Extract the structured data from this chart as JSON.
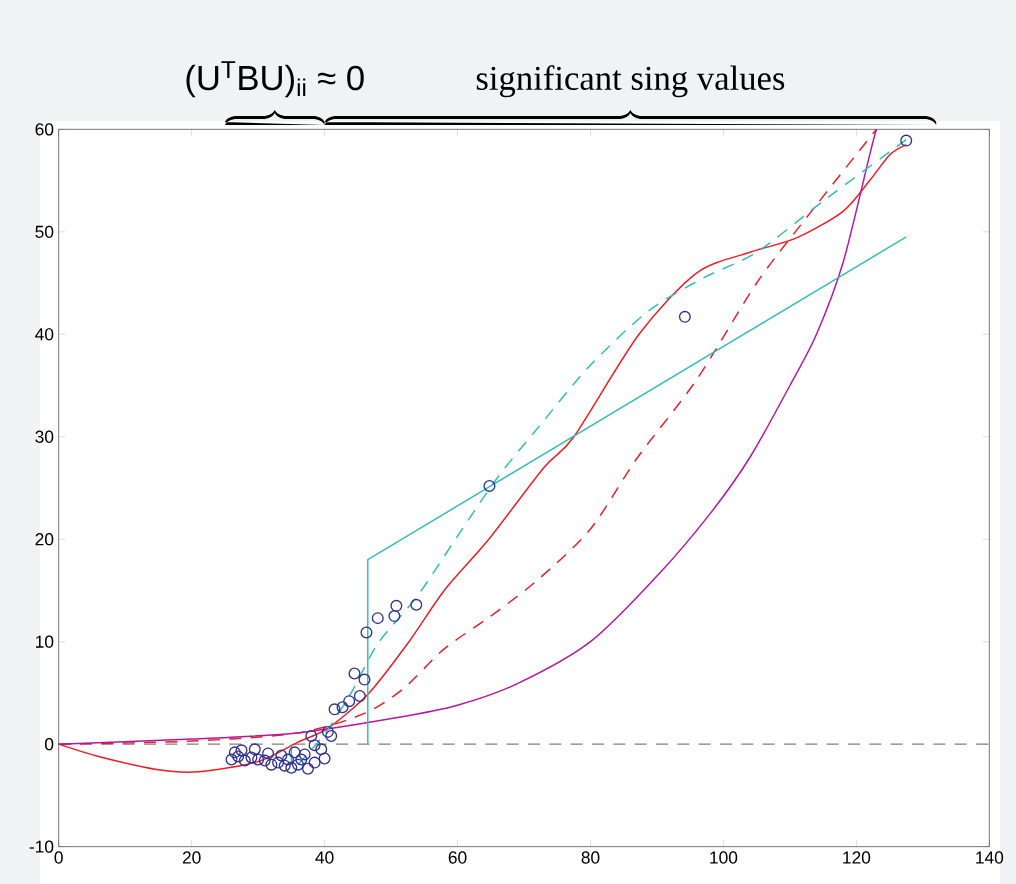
{
  "chart_data": {
    "type": "line",
    "xlim": [
      0,
      140
    ],
    "ylim": [
      -10,
      60
    ],
    "xticks": [
      0,
      20,
      40,
      60,
      80,
      100,
      120,
      140
    ],
    "yticks": [
      -10,
      0,
      10,
      20,
      30,
      40,
      50,
      60
    ],
    "grid": false,
    "annotations": [
      "(U$^{T}$BU)$_{ii}$ ≈ 0",
      "significant sing values"
    ],
    "ref_lines": [
      {
        "axis": "y",
        "value": 0,
        "color": "#808080",
        "line_style": "dashed"
      }
    ],
    "series": [
      {
        "type": "scatter",
        "marker": "circle",
        "color": "#2e3192",
        "x": [
          127.5,
          94.2,
          64.8,
          53.8,
          50.8,
          50.5,
          48,
          46.3,
          44.5,
          46,
          45.3,
          43.7,
          42.7,
          41.5,
          41,
          40.5,
          39.5,
          40,
          38.5,
          38,
          37.5,
          36.5,
          35,
          34,
          33,
          32,
          31,
          30,
          29,
          28,
          27,
          26.5,
          26,
          27.5,
          29.5,
          31.5,
          33.5,
          35.5,
          37,
          38.5,
          36,
          34.5
        ],
        "values": [
          58.9,
          41.7,
          25.2,
          13.6,
          13.5,
          12.5,
          12.3,
          10.9,
          6.9,
          6.3,
          4.7,
          4.2,
          3.6,
          3.4,
          0.8,
          1.2,
          -0.5,
          -1.4,
          -0.1,
          0.8,
          -2.4,
          -1.5,
          -2.3,
          -2.1,
          -1.8,
          -2.0,
          -1.6,
          -1.5,
          -1.3,
          -1.6,
          -1.2,
          -0.8,
          -1.5,
          -0.6,
          -0.5,
          -0.9,
          -1.1,
          -0.8,
          -1.0,
          -1.8,
          -2.0,
          -1.5
        ]
      },
      {
        "marker": "none",
        "line_style": "solid",
        "color": "#ed1c24",
        "x": [
          0,
          6,
          15,
          21,
          30,
          36,
          40.6,
          46.7,
          52.7,
          58,
          64.7,
          73,
          77.5,
          87.3,
          96,
          104,
          111,
          118,
          122,
          125,
          127.5
        ],
        "values": [
          0,
          -1.2,
          -2.5,
          -2.7,
          -1.7,
          0.2,
          1.6,
          5,
          10,
          15,
          20,
          27,
          30,
          40,
          46,
          48,
          49.4,
          52,
          55,
          57.5,
          58.5
        ]
      },
      {
        "marker": "none",
        "line_style": "dashed",
        "color": "#ed1c24",
        "x": [
          0,
          20,
          36,
          46,
          52,
          58,
          65,
          72,
          80,
          87,
          96,
          105,
          113,
          123
        ],
        "values": [
          0,
          0.3,
          1.1,
          3,
          5.5,
          9.3,
          12.5,
          16,
          21,
          27.9,
          35.6,
          45,
          51.8,
          60
        ]
      },
      {
        "marker": "none",
        "line_style": "solid",
        "color": "#b5179e",
        "x": [
          0,
          20,
          36,
          51,
          60,
          69,
          80,
          90,
          98,
          104,
          110,
          114,
          118,
          122,
          123
        ],
        "values": [
          0,
          0.5,
          1.1,
          2.6,
          3.8,
          5.9,
          10,
          16.4,
          22.5,
          28,
          35,
          40,
          47,
          57.5,
          60
        ]
      },
      {
        "type": "line",
        "marker": "none",
        "line_style": "solid",
        "color": "#33bbbb",
        "x": [
          35,
          35,
          null,
          46.5,
          46.5,
          65,
          127.5
        ],
        "values": [
          -2,
          0,
          null,
          0,
          18,
          25.2,
          49.5
        ]
      },
      {
        "marker": "none",
        "line_style": "dashed",
        "color": "#33bbbb",
        "x": [
          36,
          40,
          44,
          48,
          54,
          60,
          66,
          72,
          80,
          88.8,
          97,
          105,
          115,
          127.5
        ],
        "values": [
          -2,
          1,
          5,
          9.8,
          14.5,
          20.3,
          26,
          30.8,
          37,
          42.3,
          45.5,
          48,
          53,
          59
        ]
      }
    ]
  }
}
